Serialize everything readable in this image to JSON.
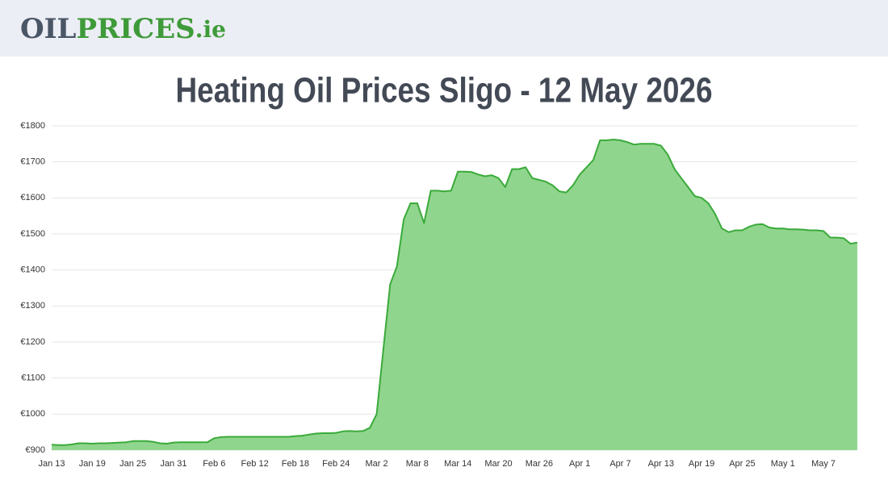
{
  "header": {
    "logo": [
      "OIL",
      "PRICES",
      ".ie"
    ]
  },
  "chart_data": {
    "type": "area",
    "title": "Heating Oil Prices Sligo - 12 May 2026",
    "categories": [
      "Jan 13",
      null,
      null,
      null,
      null,
      null,
      "Jan 19",
      null,
      null,
      null,
      null,
      null,
      "Jan 25",
      null,
      null,
      null,
      null,
      null,
      "Jan 31",
      null,
      null,
      null,
      null,
      null,
      "Feb 6",
      null,
      null,
      null,
      null,
      null,
      "Feb 12",
      null,
      null,
      null,
      null,
      null,
      "Feb 18",
      null,
      null,
      null,
      null,
      null,
      "Feb 24",
      null,
      null,
      null,
      null,
      null,
      "Mar 2",
      null,
      null,
      null,
      null,
      null,
      "Mar 8",
      null,
      null,
      null,
      null,
      null,
      "Mar 14",
      null,
      null,
      null,
      null,
      null,
      "Mar 20",
      null,
      null,
      null,
      null,
      null,
      "Mar 26",
      null,
      null,
      null,
      null,
      null,
      "Apr 1",
      null,
      null,
      null,
      null,
      null,
      "Apr 7",
      null,
      null,
      null,
      null,
      null,
      "Apr 13",
      null,
      null,
      null,
      null,
      null,
      "Apr 19",
      null,
      null,
      null,
      null,
      null,
      "Apr 25",
      null,
      null,
      null,
      null,
      null,
      "May 1",
      null,
      null,
      null,
      null,
      null,
      "May 7",
      null,
      null,
      null,
      null,
      null
    ],
    "values": [
      915,
      914,
      914,
      916,
      919,
      919,
      918,
      919,
      919,
      920,
      921,
      922,
      925,
      925,
      925,
      923,
      919,
      918,
      921,
      922,
      922,
      922,
      922,
      922,
      933,
      936,
      937,
      937,
      937,
      937,
      937,
      937,
      937,
      937,
      937,
      937,
      939,
      940,
      943,
      946,
      947,
      947,
      948,
      952,
      953,
      952,
      953,
      962,
      1000,
      1180,
      1360,
      1410,
      1540,
      1585,
      1585,
      1530,
      1620,
      1620,
      1618,
      1620,
      1673,
      1673,
      1672,
      1665,
      1660,
      1663,
      1655,
      1630,
      1680,
      1680,
      1685,
      1655,
      1650,
      1645,
      1635,
      1618,
      1615,
      1635,
      1665,
      1685,
      1705,
      1760,
      1760,
      1762,
      1760,
      1755,
      1748,
      1750,
      1750,
      1750,
      1745,
      1720,
      1680,
      1655,
      1630,
      1605,
      1600,
      1585,
      1555,
      1515,
      1505,
      1510,
      1510,
      1520,
      1526,
      1527,
      1518,
      1515,
      1515,
      1513,
      1513,
      1512,
      1510,
      1510,
      1508,
      1490,
      1490,
      1488,
      1473,
      1476
    ],
    "color": "#3aaa3a",
    "fill": "#90d58d",
    "ylim": [
      900,
      1800
    ],
    "yticks": [
      {
        "value": 900,
        "label": "€900"
      },
      {
        "value": 1000,
        "label": "€1000"
      },
      {
        "value": 1100,
        "label": "€1100"
      },
      {
        "value": 1200,
        "label": "€1200"
      },
      {
        "value": 1300,
        "label": "€1300"
      },
      {
        "value": 1400,
        "label": "€1400"
      },
      {
        "value": 1500,
        "label": "€1500"
      },
      {
        "value": 1600,
        "label": "€1600"
      },
      {
        "value": 1700,
        "label": "€1700"
      },
      {
        "value": 1800,
        "label": "€1800"
      }
    ],
    "grid": true
  }
}
